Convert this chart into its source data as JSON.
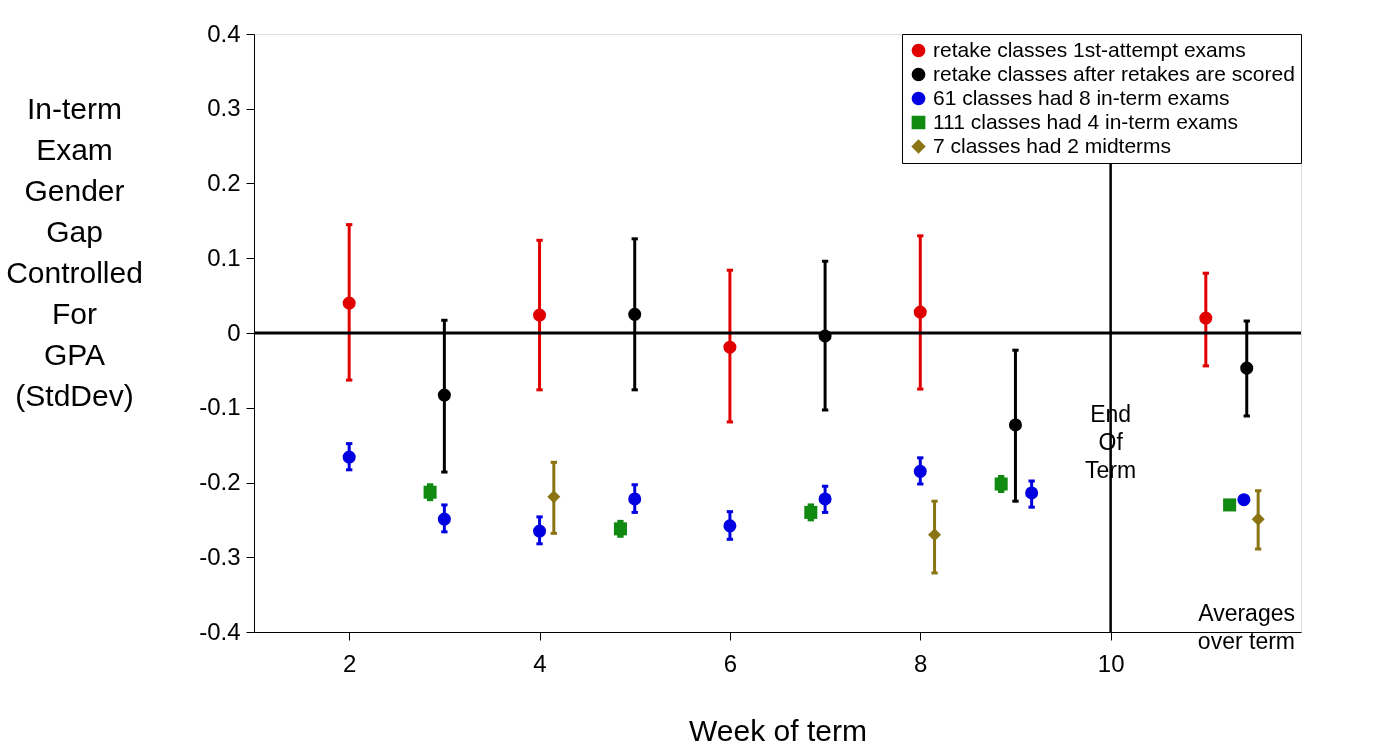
{
  "chart_data": {
    "type": "scatter",
    "xlabel": "Week of term",
    "ylabel": "In-term Exam Gender Gap Controlled For GPA (StdDev)",
    "xlim": [
      1,
      12
    ],
    "xticks": [
      2,
      4,
      6,
      8,
      10
    ],
    "ylim": [
      -0.4,
      0.4
    ],
    "yticks": [
      -0.4,
      -0.3,
      -0.2,
      -0.1,
      0,
      0.1,
      0.2,
      0.3,
      0.4
    ],
    "grid": false,
    "legend": "top right",
    "line_style": "solid",
    "series": [
      {
        "name": "retake classes 1st-attempt exams",
        "color": "#e00000",
        "marker": "circle",
        "x": [
          2,
          4,
          6,
          8,
          11
        ],
        "values": [
          0.04,
          0.024,
          -0.019,
          0.028,
          0.02
        ],
        "errors": [
          [
            -0.063,
            0.145
          ],
          [
            -0.076,
            0.124
          ],
          [
            -0.119,
            0.084
          ],
          [
            -0.075,
            0.13
          ],
          [
            -0.044,
            0.08
          ]
        ]
      },
      {
        "name": "retake classes after retakes are scored",
        "color": "#000000",
        "marker": "circle",
        "x": [
          3,
          5,
          7,
          9,
          11.43
        ],
        "values": [
          -0.083,
          0.025,
          -0.004,
          -0.123,
          -0.047
        ],
        "errors": [
          [
            -0.186,
            0.017
          ],
          [
            -0.076,
            0.126
          ],
          [
            -0.103,
            0.096
          ],
          [
            -0.225,
            -0.023
          ],
          [
            -0.111,
            0.016
          ]
        ]
      },
      {
        "name": "61 classes had 8 in-term exams",
        "color": "#0000e0",
        "marker": "circle",
        "x": [
          2,
          3,
          4,
          5,
          6,
          7,
          8,
          9.17,
          11.4
        ],
        "values": [
          -0.166,
          -0.249,
          -0.265,
          -0.222,
          -0.258,
          -0.222,
          -0.185,
          -0.214,
          -0.223
        ],
        "errors": [
          [
            -0.183,
            -0.148
          ],
          [
            -0.266,
            -0.23
          ],
          [
            -0.282,
            -0.246
          ],
          [
            -0.24,
            -0.203
          ],
          [
            -0.276,
            -0.239
          ],
          [
            -0.24,
            -0.205
          ],
          [
            -0.202,
            -0.167
          ],
          [
            -0.233,
            -0.198
          ],
          null
        ]
      },
      {
        "name": "111 classes had 4 in-term exams",
        "color": "#108a10",
        "marker": "square",
        "x": [
          2.85,
          4.85,
          6.85,
          8.85,
          11.25
        ],
        "values": [
          -0.213,
          -0.262,
          -0.24,
          -0.202,
          -0.23
        ],
        "errors": [
          0.01,
          0.01,
          0.01,
          0.01,
          null
        ]
      },
      {
        "name": "7 classes had 2 midterms",
        "color": "#8a7414",
        "marker": "diamond",
        "x": [
          4.15,
          8.15,
          11.55
        ],
        "values": [
          -0.219,
          -0.27,
          -0.249
        ],
        "errors": [
          [
            -0.268,
            -0.173
          ],
          [
            -0.321,
            -0.225
          ],
          [
            -0.289,
            -0.211
          ]
        ]
      }
    ],
    "ref_lines": [
      {
        "axis": "y",
        "value": 0,
        "color": "#000000"
      },
      {
        "axis": "x",
        "value": 10,
        "color": "#000000"
      }
    ],
    "annotations": [
      {
        "text": "End\nOf\nTerm",
        "x": 10,
        "y": -0.11
      },
      "Averages\nover term"
    ]
  }
}
